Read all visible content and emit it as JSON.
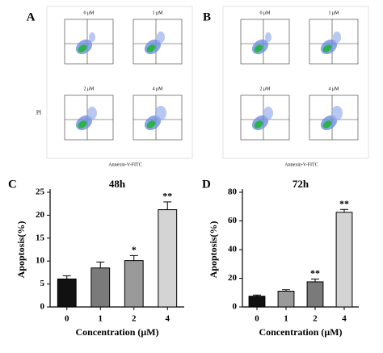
{
  "flow_panels": [
    {
      "label": "A",
      "conditions": [
        "0 μM",
        "1 μM",
        "2 μM",
        "4 μM"
      ],
      "y_label": "PI",
      "x_label": "Annexin-V-FITC"
    },
    {
      "label": "B",
      "conditions": [
        "0 μM",
        "1 μM",
        "2 μM",
        "4 μM"
      ],
      "x_label": "Annexin-V-FITC"
    }
  ],
  "chart_data": [
    {
      "type": "bar",
      "panel": "C",
      "title": "48h",
      "y_label": "Apoptosis(%)",
      "x_label": "Concentration (μM)",
      "categories": [
        "0",
        "1",
        "2",
        "4"
      ],
      "values": [
        6.1,
        8.5,
        10.1,
        21.2
      ],
      "errors": [
        0.7,
        1.3,
        1.1,
        1.7
      ],
      "annotations": [
        null,
        null,
        "*",
        "**"
      ],
      "colors": [
        "#111111",
        "#7a7a7a",
        "#9a9a9a",
        "#d4d4d4"
      ],
      "ylim": [
        0,
        25
      ],
      "yticks": [
        0,
        5,
        10,
        15,
        20,
        25
      ]
    },
    {
      "type": "bar",
      "panel": "D",
      "title": "72h",
      "y_label": "Apoptosis(%)",
      "x_label": "Concentration (μM)",
      "categories": [
        "0",
        "1",
        "2",
        "4"
      ],
      "values": [
        7.5,
        11,
        17.5,
        66
      ],
      "errors": [
        0.8,
        1,
        2,
        2
      ],
      "annotations": [
        null,
        null,
        "**",
        "**"
      ],
      "colors": [
        "#111111",
        "#9a9a9a",
        "#7a7a7a",
        "#d4d4d4"
      ],
      "ylim": [
        0,
        80
      ],
      "yticks": [
        0,
        20,
        40,
        60,
        80
      ]
    }
  ]
}
